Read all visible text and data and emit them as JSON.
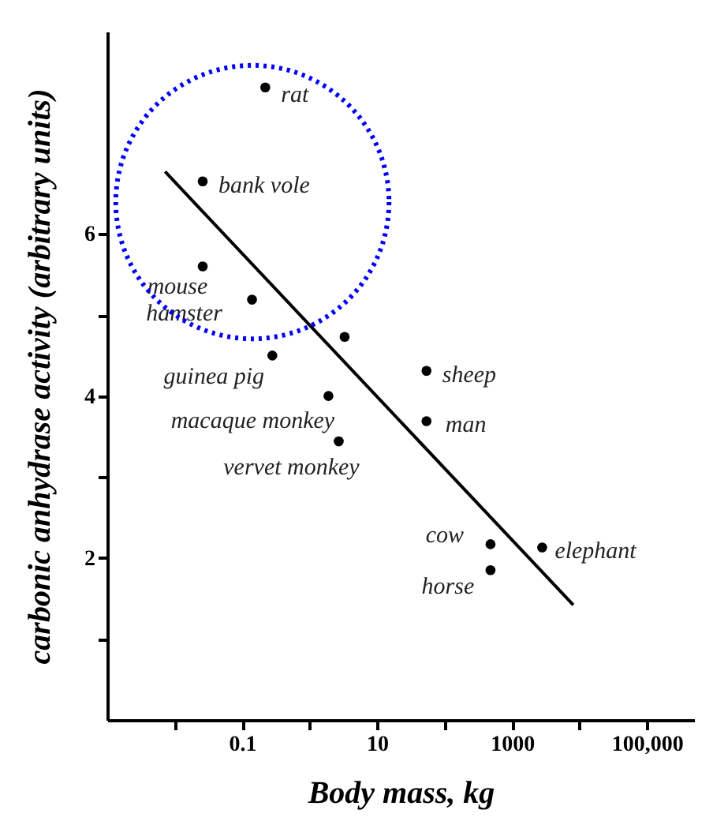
{
  "chart_data": {
    "type": "scatter",
    "xlabel": "Body mass, kg",
    "ylabel": "carbonic anhydrase activity (arbitrary units)",
    "log": "x",
    "grid": false,
    "marker": "circle",
    "xlim": [
      0.001,
      500000
    ],
    "ylim": [
      0,
      8.5
    ],
    "xticks": [
      {
        "value": 0.01,
        "label": null
      },
      0.1,
      {
        "value": 1,
        "label": null
      },
      10,
      {
        "value": 100,
        "label": null
      },
      1000,
      {
        "value": 10000,
        "label": null
      },
      {
        "value": 100000,
        "label": "100,000"
      }
    ],
    "yticks": [
      {
        "value": 1,
        "label": null
      },
      2,
      {
        "value": 3,
        "label": null
      },
      4,
      {
        "value": 5,
        "label": null
      },
      6
    ],
    "series": [
      {
        "color": "#000000",
        "x": [
          0.22,
          0.026,
          0.026,
          0.14,
          0.28,
          3.3,
          1.9,
          2.7,
          54,
          54,
          480,
          480,
          2800
        ],
        "values": [
          7.81,
          6.65,
          5.6,
          5.19,
          4.5,
          4.73,
          4.0,
          3.44,
          4.31,
          3.69,
          2.17,
          1.85,
          2.13
        ]
      },
      {
        "type": "line",
        "marker": "none",
        "color": "#000000",
        "x": [
          0.0072,
          8100
        ],
        "values": [
          6.77,
          1.42
        ]
      }
    ],
    "annotations": [
      {
        "text": "rat",
        "x": 0.22,
        "y": 7.81
      },
      {
        "text": "bank vole",
        "x": 0.026,
        "y": 6.65
      },
      {
        "text": "mouse",
        "x": 0.026,
        "y": 5.6
      },
      {
        "text": "hamster",
        "x": 0.14,
        "y": 5.19
      },
      {
        "text": "guinea pig",
        "x": 0.28,
        "y": 4.5
      },
      {
        "text": "macaque monkey",
        "x": 1.9,
        "y": 4.0
      },
      {
        "text": "vervet monkey",
        "x": 2.7,
        "y": 3.44
      },
      {
        "text": "sheep",
        "x": 54,
        "y": 4.31
      },
      {
        "text": "man",
        "x": 54,
        "y": 3.69
      },
      {
        "text": "cow",
        "x": 480,
        "y": 2.17
      },
      {
        "text": "horse",
        "x": 480,
        "y": 1.85
      },
      {
        "text": "elephant",
        "x": 2800,
        "y": 2.13
      }
    ]
  }
}
